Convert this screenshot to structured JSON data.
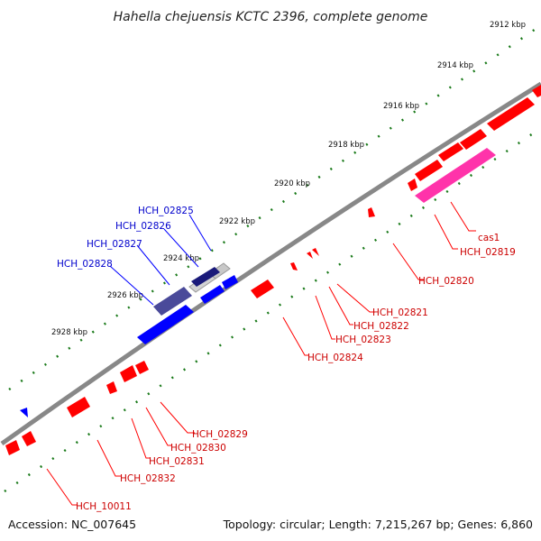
{
  "title": "Hahella chejuensis KCTC 2396, complete genome",
  "footer": {
    "accession": "Accession: NC_007645",
    "summary": "Topology: circular; Length: 7,215,267 bp; Genes: 6,860"
  },
  "colors": {
    "backbone": "#888888",
    "forward": "#ff0000",
    "reverse": "#0000ff",
    "cas": "#ff33aa",
    "tick": "#1a7a1a",
    "forward_label": "#cc0000",
    "reverse_label": "#0000cc"
  },
  "ruler": [
    "2912 kbp",
    "2914 kbp",
    "2916 kbp",
    "2918 kbp",
    "2920 kbp",
    "2922 kbp",
    "2924 kbp",
    "2926 kbp",
    "2928 kbp"
  ],
  "reverse_genes": [
    "HCH_02825",
    "HCH_02826",
    "HCH_02827",
    "HCH_02828"
  ],
  "forward_genes_right": [
    "cas1",
    "HCH_02819",
    "HCH_02820",
    "HCH_02821",
    "HCH_02822",
    "HCH_02823",
    "HCH_02824"
  ],
  "forward_genes_left": [
    "HCH_02829",
    "HCH_02830",
    "HCH_02831",
    "HCH_02832",
    "HCH_10011"
  ]
}
